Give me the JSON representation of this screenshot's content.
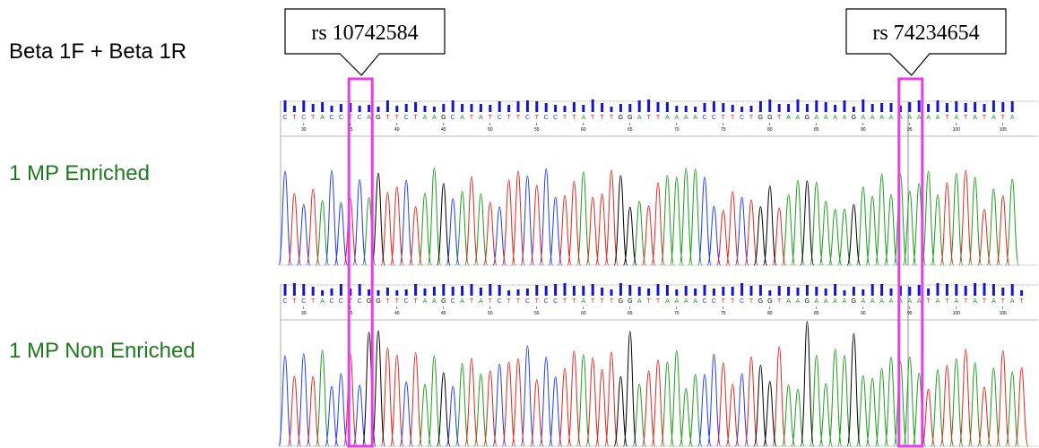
{
  "labels": {
    "primer": "Beta 1F + Beta 1R",
    "enriched": "1 MP Enriched",
    "non_enriched": "1 MP Non Enriched"
  },
  "snps": [
    {
      "id": "rs 10742584",
      "position": 36
    },
    {
      "id": "rs 74234654",
      "position": 95
    }
  ],
  "colors": {
    "A": "#1aa01a",
    "C": "#1e3cff",
    "G": "#000000",
    "T": "#e8261e",
    "highlight": "#e83ce8",
    "quality_bar": "#1515d0",
    "label_green": "#1f7a1f"
  },
  "tracks": [
    {
      "name": "enriched",
      "sequence": "CTCTACCTCAGTTCTAAGCATATCTTCTCCTTATTTGGATTAAAACCTTCTGGTAAGAAAAGAAAAAAAAATATATATA",
      "ticks": [
        30,
        35,
        40,
        45,
        50,
        55,
        60,
        65,
        70,
        75,
        80,
        85,
        90,
        95,
        100,
        105
      ]
    },
    {
      "name": "non_enriched",
      "sequence": "CTCTACCTCGGTTCTAAGCATATCTTCTCCTTATTTGGATTAAAACCTTCTGGTAAGAAAAGAAAAAAATATATATATAT",
      "ticks": [
        30,
        35,
        40,
        45,
        50,
        55,
        60,
        65,
        70,
        75,
        80,
        85,
        90,
        95,
        100,
        105
      ]
    }
  ]
}
